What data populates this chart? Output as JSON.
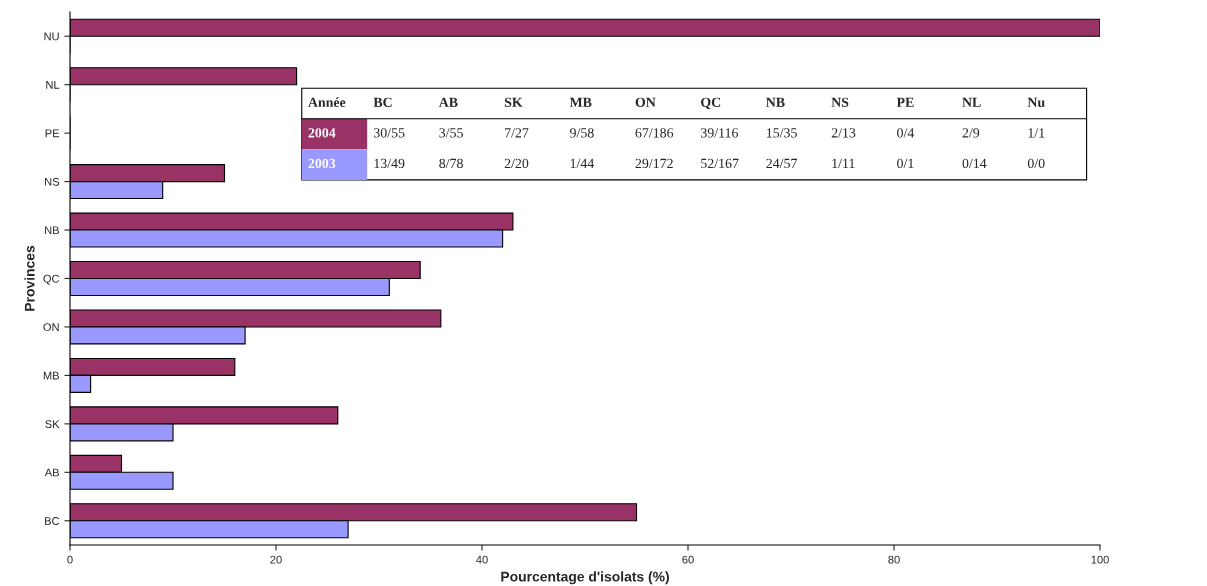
{
  "chart_data": {
    "type": "bar",
    "orientation": "horizontal",
    "xlabel": "Pourcentage d'isolats (%)",
    "ylabel": "Provinces",
    "categories": [
      "NU",
      "NL",
      "PE",
      "NS",
      "NB",
      "QC",
      "ON",
      "MB",
      "SK",
      "AB",
      "BC"
    ],
    "series": [
      {
        "name": "2004",
        "color": "#993366",
        "values": [
          100,
          22,
          0,
          15,
          43,
          34,
          36,
          16,
          26,
          5,
          55
        ]
      },
      {
        "name": "2003",
        "color": "#9999ff",
        "values": [
          0,
          0,
          0,
          9,
          42,
          31,
          17,
          2,
          10,
          10,
          27
        ]
      }
    ],
    "xlim": [
      0,
      100
    ],
    "xticks": [
      0,
      20,
      40,
      60,
      80,
      100
    ],
    "grid": false,
    "legend": false,
    "annotations": [
      "Année",
      "BC",
      "AB",
      "SK",
      "MB",
      "ON",
      "QC",
      "NB",
      "NS",
      "PE",
      "NL",
      "Nu",
      "30/55",
      "3/55",
      "7/27",
      "9/58",
      "67/186",
      "39/116",
      "15/35",
      "2/13",
      "0/4",
      "2/9",
      "1/1",
      "13/49",
      "8/78",
      "2/20",
      "1/44",
      "29/172",
      "52/167",
      "24/57",
      "1/11",
      "0/1",
      "0/14",
      "0/0"
    ]
  }
}
